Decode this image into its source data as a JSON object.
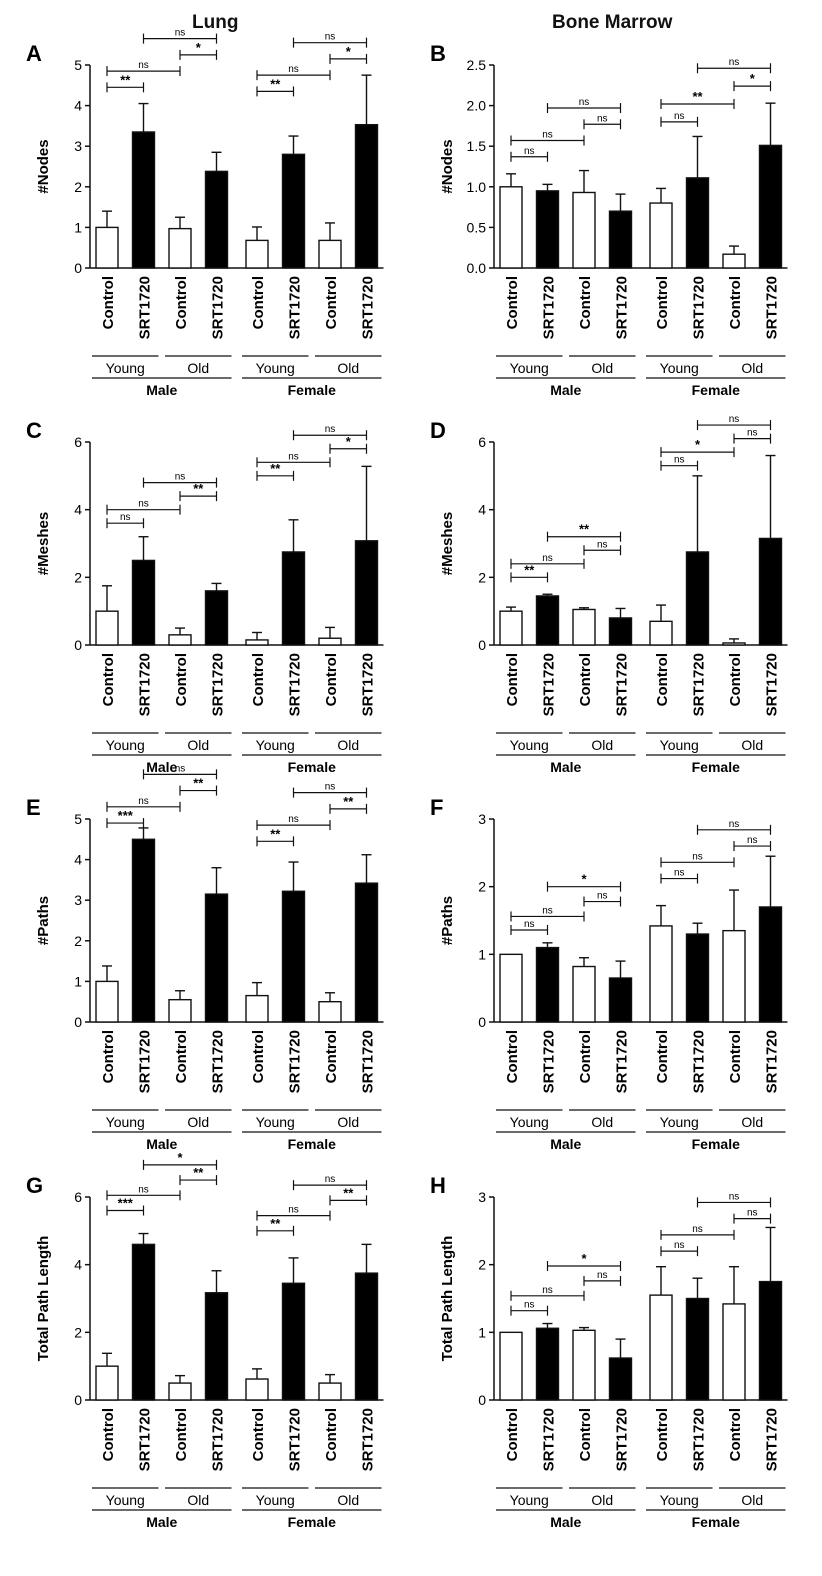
{
  "column_titles": [
    "Lung",
    "Bone Marrow"
  ],
  "shared": {
    "bar_labels": [
      "Control",
      "SRT1720",
      "Control",
      "SRT1720",
      "Control",
      "SRT1720",
      "Control",
      "SRT1720"
    ],
    "age_labels": [
      "Young",
      "Old",
      "Young",
      "Old"
    ],
    "sex_labels": [
      "Male",
      "Female"
    ]
  },
  "colors": {
    "control_fill": "#ffffff",
    "treated_fill": "#000000",
    "bracket": "#111111"
  },
  "chart_data": [
    {
      "panel": "A",
      "tissue": "Lung",
      "type": "bar",
      "ylabel": "#Nodes",
      "ylim": [
        0,
        5
      ],
      "yticks": [
        "0",
        "1",
        "2",
        "3",
        "4",
        "5"
      ],
      "values": [
        1.0,
        3.35,
        0.97,
        2.38,
        0.68,
        2.8,
        0.68,
        3.53
      ],
      "errors": [
        0.4,
        0.7,
        0.28,
        0.47,
        0.33,
        0.45,
        0.43,
        1.22
      ],
      "comparisons": [
        {
          "from": 0,
          "to": 1,
          "label": "**",
          "y": 4.45
        },
        {
          "from": 0,
          "to": 2,
          "label": "ns",
          "y": 4.85
        },
        {
          "from": 2,
          "to": 3,
          "label": "*",
          "y": 5.25
        },
        {
          "from": 1,
          "to": 3,
          "label": "ns",
          "y": 5.65
        },
        {
          "from": 4,
          "to": 5,
          "label": "**",
          "y": 4.35
        },
        {
          "from": 4,
          "to": 6,
          "label": "ns",
          "y": 4.75
        },
        {
          "from": 6,
          "to": 7,
          "label": "*",
          "y": 5.15
        },
        {
          "from": 5,
          "to": 7,
          "label": "ns",
          "y": 5.55
        }
      ]
    },
    {
      "panel": "B",
      "tissue": "Bone Marrow",
      "type": "bar",
      "ylabel": "#Nodes",
      "ylim": [
        0,
        2.5
      ],
      "yticks": [
        "0.0",
        "0.5",
        "1.0",
        "1.5",
        "2.0",
        "2.5"
      ],
      "values": [
        1.0,
        0.95,
        0.93,
        0.7,
        0.8,
        1.11,
        0.17,
        1.51
      ],
      "errors": [
        0.16,
        0.08,
        0.27,
        0.21,
        0.18,
        0.51,
        0.1,
        0.52
      ],
      "comparisons": [
        {
          "from": 0,
          "to": 1,
          "label": "ns",
          "y": 1.37
        },
        {
          "from": 0,
          "to": 2,
          "label": "ns",
          "y": 1.57
        },
        {
          "from": 2,
          "to": 3,
          "label": "ns",
          "y": 1.77
        },
        {
          "from": 1,
          "to": 3,
          "label": "ns",
          "y": 1.97
        },
        {
          "from": 4,
          "to": 5,
          "label": "ns",
          "y": 1.8
        },
        {
          "from": 4,
          "to": 6,
          "label": "**",
          "y": 2.02
        },
        {
          "from": 6,
          "to": 7,
          "label": "*",
          "y": 2.24
        },
        {
          "from": 5,
          "to": 7,
          "label": "ns",
          "y": 2.46
        }
      ]
    },
    {
      "panel": "C",
      "tissue": "Lung",
      "type": "bar",
      "ylabel": "#Meshes",
      "ylim": [
        0,
        6
      ],
      "yticks": [
        "0",
        "2",
        "4",
        "6"
      ],
      "values": [
        1.0,
        2.5,
        0.3,
        1.6,
        0.15,
        2.75,
        0.2,
        3.08
      ],
      "errors": [
        0.75,
        0.7,
        0.2,
        0.22,
        0.22,
        0.95,
        0.32,
        2.2
      ],
      "comparisons": [
        {
          "from": 0,
          "to": 1,
          "label": "ns",
          "y": 3.6
        },
        {
          "from": 0,
          "to": 2,
          "label": "ns",
          "y": 4.0
        },
        {
          "from": 2,
          "to": 3,
          "label": "**",
          "y": 4.4
        },
        {
          "from": 1,
          "to": 3,
          "label": "ns",
          "y": 4.8
        },
        {
          "from": 4,
          "to": 5,
          "label": "**",
          "y": 5.0
        },
        {
          "from": 4,
          "to": 6,
          "label": "ns",
          "y": 5.4
        },
        {
          "from": 6,
          "to": 7,
          "label": "*",
          "y": 5.8
        },
        {
          "from": 5,
          "to": 7,
          "label": "ns",
          "y": 6.2
        }
      ]
    },
    {
      "panel": "D",
      "tissue": "Bone Marrow",
      "type": "bar",
      "ylabel": "#Meshes",
      "ylim": [
        0,
        6
      ],
      "yticks": [
        "0",
        "2",
        "4",
        "6"
      ],
      "values": [
        1.0,
        1.45,
        1.05,
        0.8,
        0.7,
        2.75,
        0.06,
        3.15
      ],
      "errors": [
        0.12,
        0.05,
        0.05,
        0.28,
        0.48,
        2.25,
        0.12,
        2.45
      ],
      "comparisons": [
        {
          "from": 0,
          "to": 1,
          "label": "**",
          "y": 2.0
        },
        {
          "from": 0,
          "to": 2,
          "label": "ns",
          "y": 2.4
        },
        {
          "from": 2,
          "to": 3,
          "label": "ns",
          "y": 2.8
        },
        {
          "from": 1,
          "to": 3,
          "label": "**",
          "y": 3.2
        },
        {
          "from": 4,
          "to": 5,
          "label": "ns",
          "y": 5.3
        },
        {
          "from": 4,
          "to": 6,
          "label": "*",
          "y": 5.7
        },
        {
          "from": 6,
          "to": 7,
          "label": "ns",
          "y": 6.1
        },
        {
          "from": 5,
          "to": 7,
          "label": "ns",
          "y": 6.5
        }
      ]
    },
    {
      "panel": "E",
      "tissue": "Lung",
      "type": "bar",
      "ylabel": "#Paths",
      "ylim": [
        0,
        5
      ],
      "yticks": [
        "0",
        "1",
        "2",
        "3",
        "4",
        "5"
      ],
      "values": [
        1.0,
        4.5,
        0.55,
        3.15,
        0.65,
        3.22,
        0.5,
        3.42
      ],
      "errors": [
        0.38,
        0.28,
        0.22,
        0.65,
        0.32,
        0.72,
        0.22,
        0.7
      ],
      "comparisons": [
        {
          "from": 0,
          "to": 1,
          "label": "***",
          "y": 4.9
        },
        {
          "from": 0,
          "to": 2,
          "label": "ns",
          "y": 5.3
        },
        {
          "from": 2,
          "to": 3,
          "label": "**",
          "y": 5.7
        },
        {
          "from": 1,
          "to": 3,
          "label": "ns",
          "y": 6.1
        },
        {
          "from": 4,
          "to": 5,
          "label": "**",
          "y": 4.45
        },
        {
          "from": 4,
          "to": 6,
          "label": "ns",
          "y": 4.85
        },
        {
          "from": 6,
          "to": 7,
          "label": "**",
          "y": 5.25
        },
        {
          "from": 5,
          "to": 7,
          "label": "ns",
          "y": 5.65
        }
      ]
    },
    {
      "panel": "F",
      "tissue": "Bone Marrow",
      "type": "bar",
      "ylabel": "#Paths",
      "ylim": [
        0,
        3
      ],
      "yticks": [
        "0",
        "1",
        "2",
        "3"
      ],
      "values": [
        1.0,
        1.1,
        0.82,
        0.65,
        1.42,
        1.3,
        1.35,
        1.7
      ],
      "errors": [
        0.0,
        0.07,
        0.13,
        0.25,
        0.3,
        0.16,
        0.6,
        0.75
      ],
      "comparisons": [
        {
          "from": 0,
          "to": 1,
          "label": "ns",
          "y": 1.36
        },
        {
          "from": 0,
          "to": 2,
          "label": "ns",
          "y": 1.56
        },
        {
          "from": 2,
          "to": 3,
          "label": "ns",
          "y": 1.78
        },
        {
          "from": 1,
          "to": 3,
          "label": "*",
          "y": 2.0
        },
        {
          "from": 4,
          "to": 5,
          "label": "ns",
          "y": 2.12
        },
        {
          "from": 4,
          "to": 6,
          "label": "ns",
          "y": 2.36
        },
        {
          "from": 6,
          "to": 7,
          "label": "ns",
          "y": 2.6
        },
        {
          "from": 5,
          "to": 7,
          "label": "ns",
          "y": 2.84
        }
      ]
    },
    {
      "panel": "G",
      "tissue": "Lung",
      "type": "bar",
      "ylabel": "Total Path Length",
      "ylim": [
        0,
        6
      ],
      "yticks": [
        "0",
        "2",
        "4",
        "6"
      ],
      "values": [
        1.0,
        4.6,
        0.5,
        3.17,
        0.62,
        3.45,
        0.5,
        3.75
      ],
      "errors": [
        0.38,
        0.32,
        0.22,
        0.65,
        0.3,
        0.75,
        0.25,
        0.85
      ],
      "comparisons": [
        {
          "from": 0,
          "to": 1,
          "label": "***",
          "y": 5.6
        },
        {
          "from": 0,
          "to": 2,
          "label": "ns",
          "y": 6.05
        },
        {
          "from": 2,
          "to": 3,
          "label": "**",
          "y": 6.5
        },
        {
          "from": 1,
          "to": 3,
          "label": "*",
          "y": 6.95
        },
        {
          "from": 4,
          "to": 5,
          "label": "**",
          "y": 5.0
        },
        {
          "from": 4,
          "to": 6,
          "label": "ns",
          "y": 5.45
        },
        {
          "from": 6,
          "to": 7,
          "label": "**",
          "y": 5.9
        },
        {
          "from": 5,
          "to": 7,
          "label": "ns",
          "y": 6.35
        }
      ]
    },
    {
      "panel": "H",
      "tissue": "Bone Marrow",
      "type": "bar",
      "ylabel": "Total Path Length",
      "ylim": [
        0,
        3
      ],
      "yticks": [
        "0",
        "1",
        "2",
        "3"
      ],
      "values": [
        1.0,
        1.06,
        1.03,
        0.62,
        1.55,
        1.5,
        1.42,
        1.75
      ],
      "errors": [
        0.0,
        0.07,
        0.04,
        0.28,
        0.42,
        0.3,
        0.55,
        0.8
      ],
      "comparisons": [
        {
          "from": 0,
          "to": 1,
          "label": "ns",
          "y": 1.32
        },
        {
          "from": 0,
          "to": 2,
          "label": "ns",
          "y": 1.54
        },
        {
          "from": 2,
          "to": 3,
          "label": "ns",
          "y": 1.76
        },
        {
          "from": 1,
          "to": 3,
          "label": "*",
          "y": 1.98
        },
        {
          "from": 4,
          "to": 5,
          "label": "ns",
          "y": 2.2
        },
        {
          "from": 4,
          "to": 6,
          "label": "ns",
          "y": 2.44
        },
        {
          "from": 6,
          "to": 7,
          "label": "ns",
          "y": 2.68
        },
        {
          "from": 5,
          "to": 7,
          "label": "ns",
          "y": 2.92
        }
      ]
    }
  ]
}
